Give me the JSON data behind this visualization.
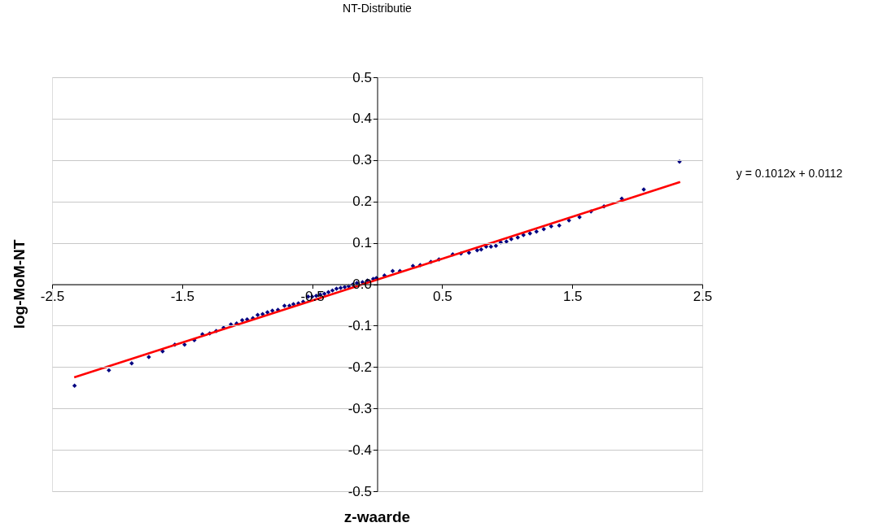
{
  "chart_data": {
    "type": "scatter",
    "title": "NT-Distributie",
    "xlabel": "z-waarde",
    "ylabel": "log-MoM-NT",
    "annotations": [
      "y = 0.1012x + 0.0112"
    ],
    "xlim": [
      -2.5,
      2.5
    ],
    "xticks": [
      -2.5,
      -1.5,
      -0.5,
      0.5,
      1.5,
      2.5
    ],
    "ylim": [
      -0.5,
      0.5
    ],
    "yticks": [
      -0.5,
      -0.4,
      -0.3,
      -0.2,
      -0.1,
      {
        "value": 0,
        "label": "0.0"
      },
      0.1,
      0.2,
      0.3,
      0.4,
      0.5
    ],
    "grid": "y",
    "series": [
      {
        "marker": "diamond",
        "color": "#000080",
        "x": [
          -2.327,
          -2.063,
          -1.888,
          -1.756,
          -1.65,
          -1.556,
          -1.481,
          -1.406,
          -1.344,
          -1.288,
          -1.238,
          -1.181,
          -1.125,
          -1.081,
          -1.038,
          -1.0,
          -0.956,
          -0.919,
          -0.881,
          -0.844,
          -0.806,
          -0.763,
          -0.713,
          -0.675,
          -0.644,
          -0.606,
          -0.569,
          -0.531,
          -0.5,
          -0.469,
          -0.438,
          -0.406,
          -0.375,
          -0.344,
          -0.313,
          -0.281,
          -0.25,
          -0.219,
          -0.188,
          -0.156,
          -0.113,
          -0.075,
          -0.031,
          -0.006,
          0.056,
          0.119,
          0.175,
          0.275,
          0.331,
          0.413,
          0.475,
          0.581,
          0.644,
          0.706,
          0.769,
          0.8,
          0.838,
          0.875,
          0.913,
          0.95,
          0.994,
          1.031,
          1.081,
          1.125,
          1.175,
          1.225,
          1.281,
          1.338,
          1.4,
          1.475,
          1.556,
          1.644,
          1.744,
          1.881,
          2.05,
          2.325
        ],
        "values": [
          -0.245,
          -0.208,
          -0.191,
          -0.176,
          -0.162,
          -0.146,
          -0.146,
          -0.135,
          -0.121,
          -0.119,
          -0.113,
          -0.105,
          -0.097,
          -0.095,
          -0.087,
          -0.085,
          -0.082,
          -0.074,
          -0.072,
          -0.068,
          -0.064,
          -0.062,
          -0.052,
          -0.052,
          -0.048,
          -0.046,
          -0.042,
          -0.03,
          -0.03,
          -0.028,
          -0.025,
          -0.023,
          -0.019,
          -0.015,
          -0.011,
          -0.009,
          -0.007,
          -0.005,
          -0.001,
          0.003,
          0.005,
          0.009,
          0.013,
          0.015,
          0.021,
          0.032,
          0.032,
          0.044,
          0.046,
          0.054,
          0.06,
          0.072,
          0.074,
          0.076,
          0.082,
          0.084,
          0.091,
          0.091,
          0.093,
          0.101,
          0.103,
          0.109,
          0.113,
          0.119,
          0.123,
          0.127,
          0.133,
          0.14,
          0.142,
          0.154,
          0.162,
          0.176,
          0.188,
          0.207,
          0.229,
          0.296
        ]
      },
      {
        "type": "line",
        "color": "#ff0000",
        "x": [
          -2.33,
          2.33
        ],
        "values": [
          -0.225,
          0.247
        ]
      }
    ]
  }
}
